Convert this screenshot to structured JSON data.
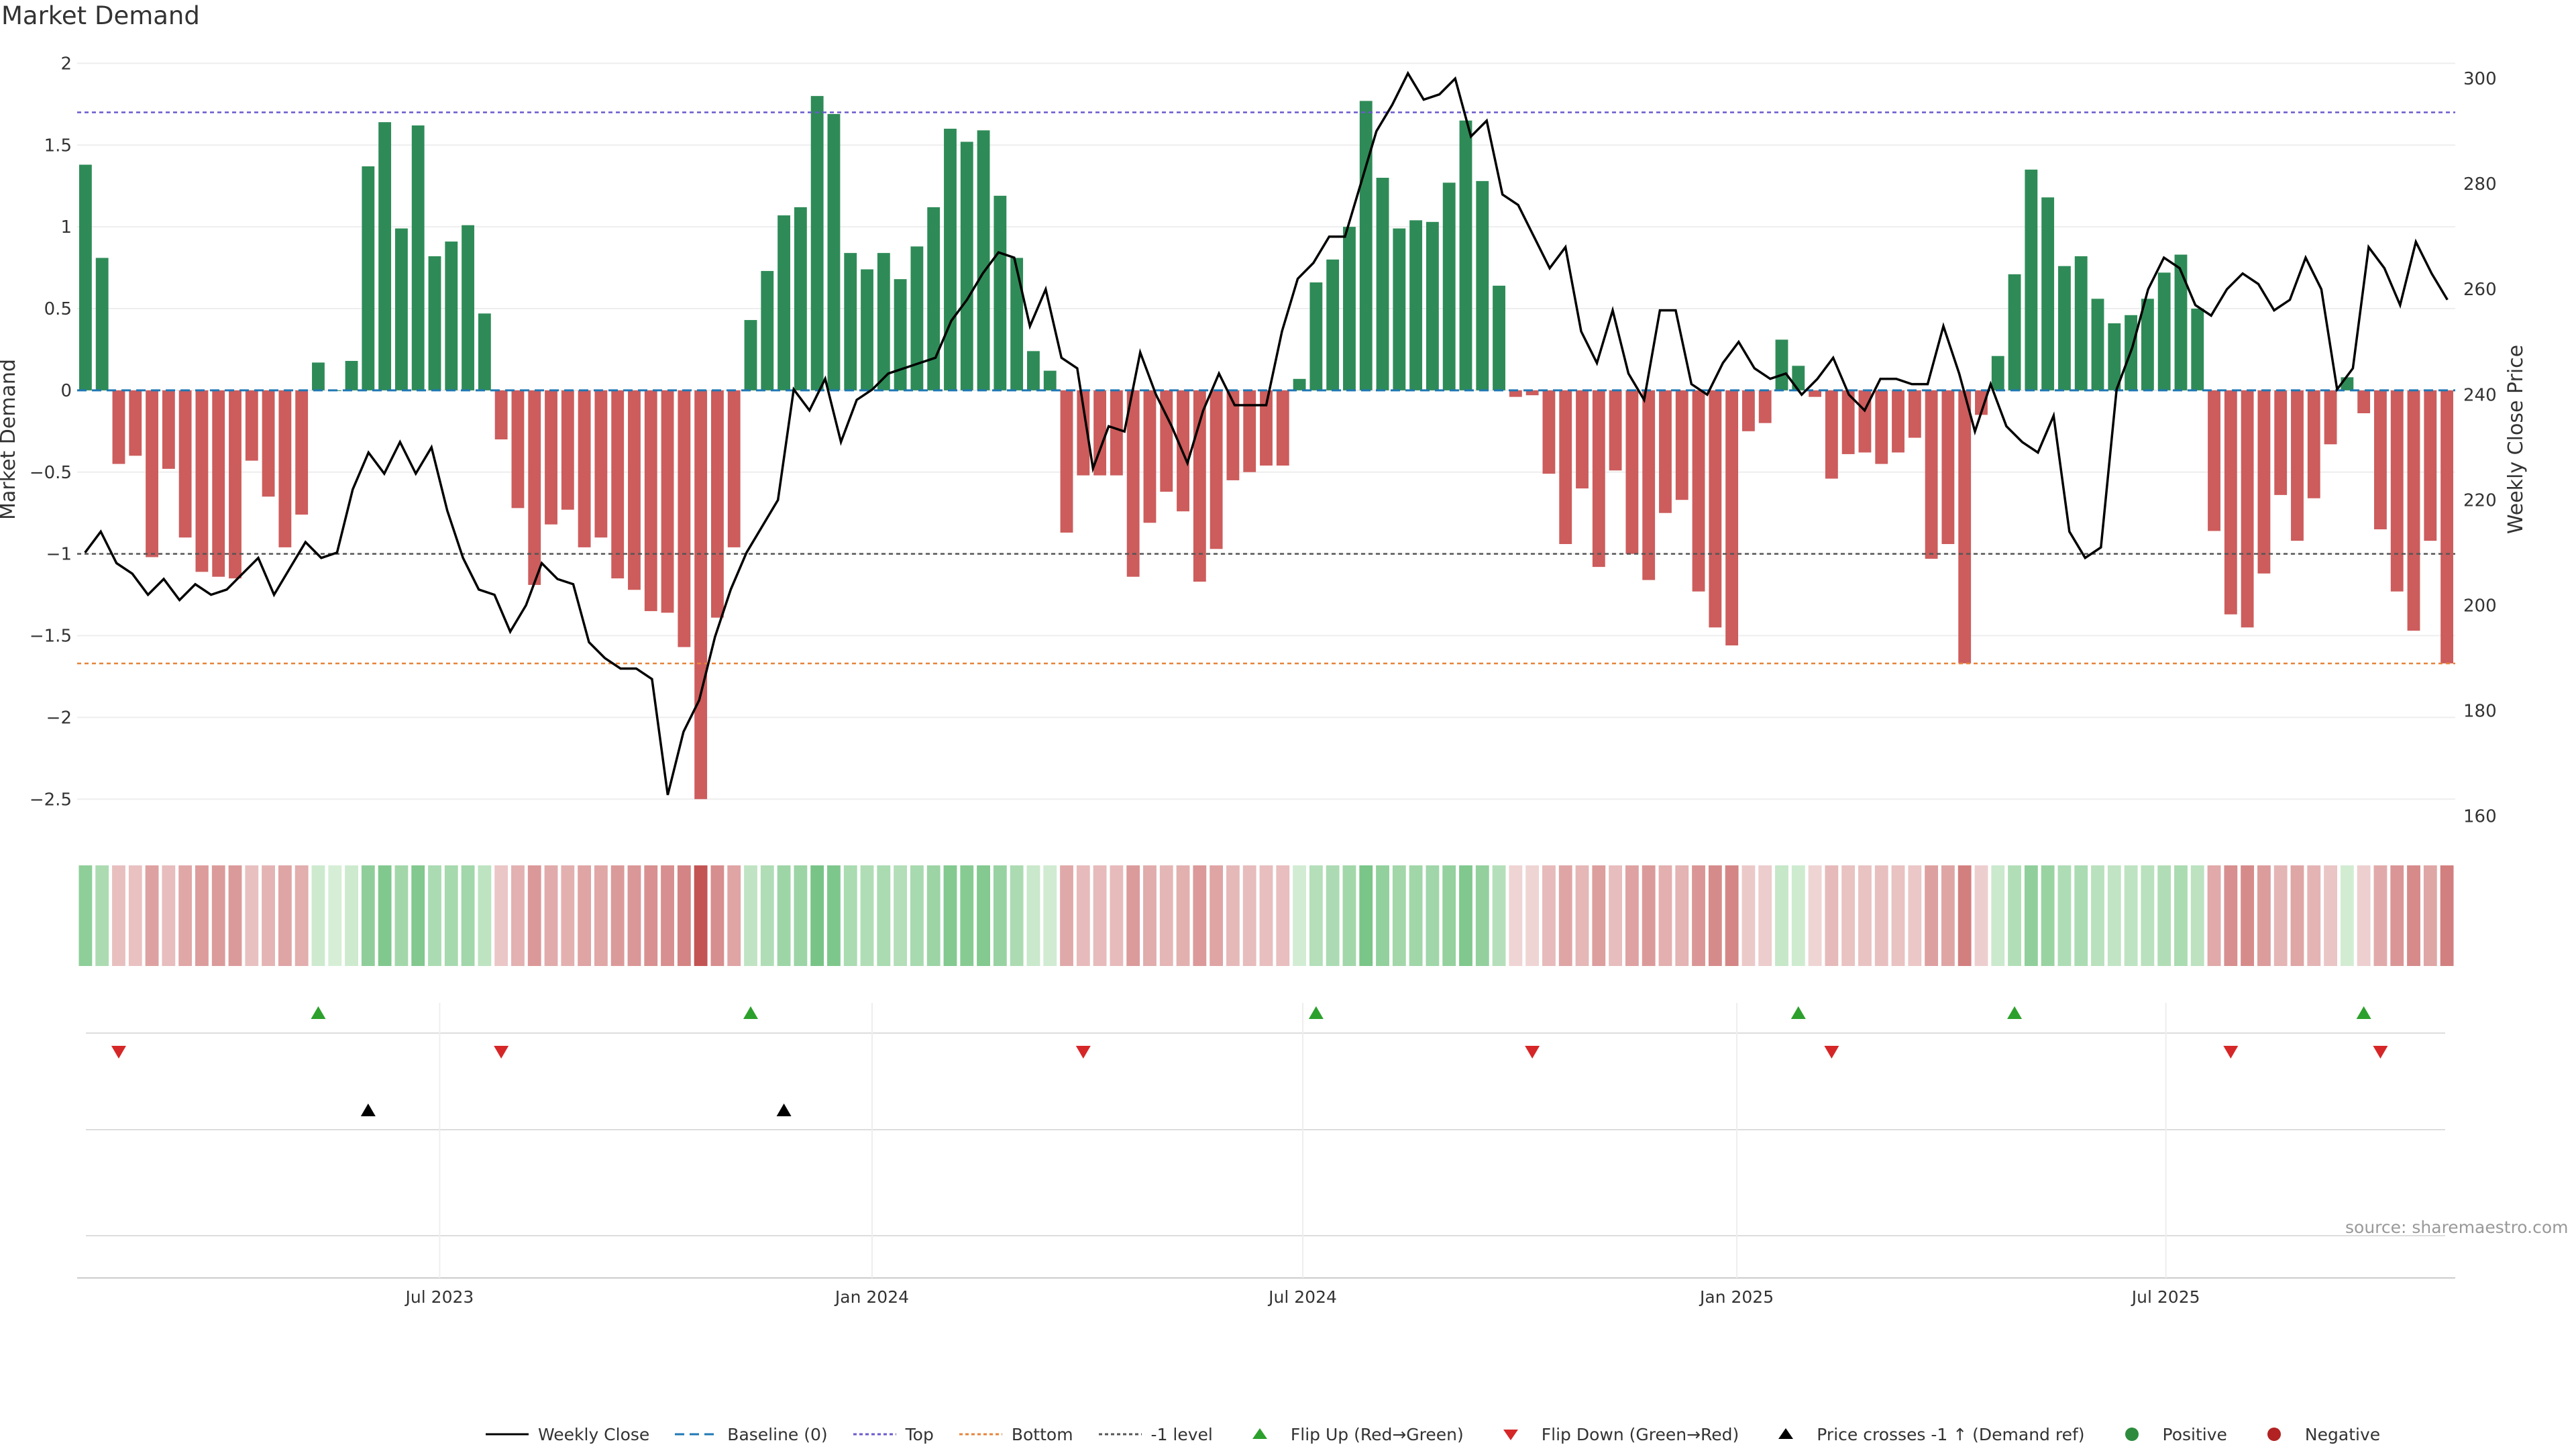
{
  "chart_data": {
    "type": "bar",
    "title": "Market Demand",
    "ylabel": "Market Demand",
    "y2label": "Weekly Close Price",
    "ylim": [
      -2.7,
      2.1
    ],
    "y2lim": [
      157,
      306
    ],
    "yticks": [
      "2",
      "1.5",
      "1",
      "0.5",
      "0",
      "−0.5",
      "−1",
      "−1.5",
      "−2",
      "−2.5"
    ],
    "ytick_values": [
      2,
      1.5,
      1,
      0.5,
      0,
      -0.5,
      -1,
      -1.5,
      -2,
      -2.5
    ],
    "y2ticks": [
      "300",
      "280",
      "260",
      "240",
      "220",
      "200",
      "180",
      "160"
    ],
    "y2tick_values": [
      300,
      280,
      260,
      240,
      220,
      200,
      180,
      160
    ],
    "xticks": [
      "Jul 2023",
      "Jan 2024",
      "Jul 2024",
      "Jan 2025",
      "Jul 2025"
    ],
    "xtick_positions": [
      21.3,
      47.3,
      73.2,
      99.3,
      125.1
    ],
    "reference_lines": {
      "top": 1.7,
      "bottom": -1.67,
      "minus_one": -1.0,
      "baseline": 0
    },
    "demand": [
      1.38,
      0.81,
      -0.45,
      -0.4,
      -1.02,
      -0.48,
      -0.9,
      -1.11,
      -1.14,
      -1.15,
      -0.43,
      -0.65,
      -0.96,
      -0.76,
      0.17,
      0.0,
      0.18,
      1.37,
      1.64,
      0.99,
      1.62,
      0.82,
      0.91,
      1.01,
      0.47,
      -0.3,
      -0.72,
      -1.19,
      -0.82,
      -0.73,
      -0.96,
      -0.9,
      -1.15,
      -1.22,
      -1.35,
      -1.36,
      -1.57,
      -2.5,
      -1.39,
      -0.96,
      0.43,
      0.73,
      1.07,
      1.12,
      1.8,
      1.69,
      0.84,
      0.74,
      0.84,
      0.68,
      0.88,
      1.12,
      1.6,
      1.52,
      1.59,
      1.19,
      0.81,
      0.24,
      0.12,
      -0.87,
      -0.52,
      -0.52,
      -0.52,
      -1.14,
      -0.81,
      -0.62,
      -0.74,
      -1.17,
      -0.97,
      -0.55,
      -0.5,
      -0.46,
      -0.46,
      0.07,
      0.66,
      0.8,
      1.0,
      1.77,
      1.3,
      0.99,
      1.04,
      1.03,
      1.27,
      1.65,
      1.28,
      0.64,
      -0.04,
      -0.03,
      -0.51,
      -0.94,
      -0.6,
      -1.08,
      -0.49,
      -1.0,
      -1.16,
      -0.75,
      -0.67,
      -1.23,
      -1.45,
      -1.56,
      -0.25,
      -0.2,
      0.31,
      0.15,
      -0.04,
      -0.54,
      -0.39,
      -0.38,
      -0.45,
      -0.38,
      -0.29,
      -1.03,
      -0.94,
      -1.67,
      -0.15,
      0.21,
      0.71,
      1.35,
      1.18,
      0.76,
      0.82,
      0.56,
      0.41,
      0.46,
      0.56,
      0.72,
      0.83,
      0.5,
      -0.86,
      -1.37,
      -1.45,
      -1.12,
      -0.64,
      -0.92,
      -0.66,
      -0.33,
      0.08,
      -0.14,
      -0.85,
      -1.23,
      -1.47,
      -0.92,
      -1.67
    ],
    "price": [
      210,
      214,
      208,
      206,
      202,
      205,
      201,
      204,
      202,
      203,
      206,
      209,
      202,
      207,
      212,
      209,
      210,
      222,
      229,
      225,
      231,
      225,
      230,
      218,
      209,
      203,
      202,
      195,
      200,
      208,
      205,
      204,
      193,
      190,
      188,
      188,
      186,
      164,
      176,
      182,
      194,
      203,
      210,
      215,
      220,
      241,
      237,
      243,
      231,
      239,
      241,
      244,
      245,
      246,
      247,
      254,
      258,
      263,
      267,
      266,
      253,
      260,
      247,
      245,
      226,
      234,
      233,
      248,
      240,
      234,
      227,
      237,
      244,
      238,
      238,
      238,
      252,
      262,
      265,
      270,
      270,
      280,
      290,
      295,
      301,
      296,
      297,
      300,
      289,
      292,
      278,
      276,
      270,
      264,
      268,
      252,
      246,
      256,
      244,
      239,
      256,
      256,
      242,
      240,
      246,
      250,
      245,
      243,
      244,
      240,
      243,
      247,
      240,
      237,
      243,
      243,
      242,
      242,
      253,
      244,
      233,
      242,
      234,
      231,
      229,
      236,
      214,
      209,
      211,
      241,
      249,
      260,
      266,
      264,
      257,
      255,
      260,
      263,
      261,
      256,
      258,
      266,
      260,
      241,
      245,
      268,
      264,
      257,
      269,
      263,
      258
    ],
    "price_samples_note": "",
    "flip_up_indices": [
      14,
      40,
      74,
      103,
      116,
      137
    ],
    "flip_down_indices": [
      2,
      25,
      60,
      87,
      105,
      129,
      138
    ],
    "price_cross_indices": [
      17,
      42
    ],
    "series": [
      {
        "name": "Weekly Close",
        "color": "#000000"
      },
      {
        "name": "Baseline (0)",
        "color": "#1f77b4"
      },
      {
        "name": "Top",
        "color": "#6a5acd"
      },
      {
        "name": "Bottom",
        "color": "#e6843a"
      },
      {
        "name": "-1 level",
        "color": "#555555"
      },
      {
        "name": "Flip Up (Red→Green)",
        "color": "#2ca02c"
      },
      {
        "name": "Flip Down (Green→Red)",
        "color": "#d62728"
      },
      {
        "name": "Price crosses -1 ↑ (Demand ref)",
        "color": "#000000"
      },
      {
        "name": "Positive",
        "color": "#2e8b3e"
      },
      {
        "name": "Negative",
        "color": "#b22222"
      }
    ],
    "positive_color": "#2e8b57",
    "negative_color": "#cd5c5c",
    "source": "source: sharemaestro.com"
  }
}
